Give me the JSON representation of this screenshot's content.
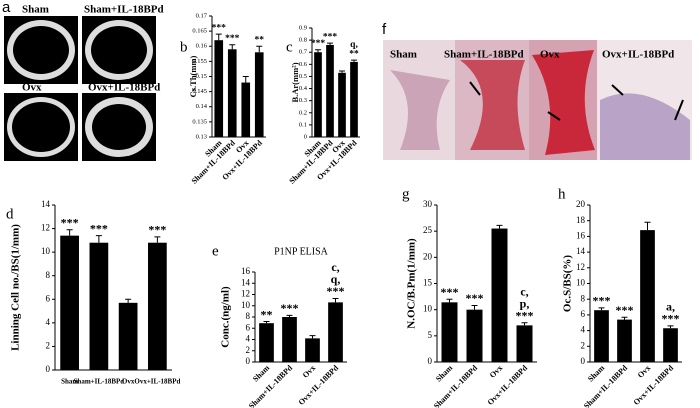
{
  "chart_data": [
    {
      "type": "bar",
      "panel": "b",
      "y_label": "Cs.Th(mm)",
      "categories": [
        "Sham",
        "Sham+IL-18BPd",
        "Ovx",
        "Ovx+IL-18BPd"
      ],
      "values": [
        0.162,
        0.159,
        0.148,
        0.158
      ],
      "errors": [
        0.002,
        0.0015,
        0.002,
        0.002
      ],
      "annotations": [
        [
          "***"
        ],
        [
          "***"
        ],
        null,
        [
          "**"
        ]
      ],
      "color": "#000000",
      "ylim": [
        0.13,
        0.17
      ],
      "yticks": [
        0.13,
        0.135,
        0.14,
        0.145,
        0.15,
        0.155,
        0.16,
        0.165,
        0.17
      ]
    },
    {
      "type": "bar",
      "panel": "c",
      "y_label": "B.Ar(mm²)",
      "categories": [
        "Sham",
        "Sham+IL-18BPd",
        "Ovx",
        "Ovx+IL-18BPd"
      ],
      "values": [
        0.7,
        0.76,
        0.53,
        0.62
      ],
      "errors": [
        0.02,
        0.015,
        0.015,
        0.015
      ],
      "annotations": [
        [
          "***"
        ],
        [
          "***"
        ],
        null,
        [
          "q,",
          "**"
        ]
      ],
      "color": "#000000",
      "ylim": [
        0,
        0.9
      ],
      "yticks": [
        0,
        0.1,
        0.2,
        0.3,
        0.4,
        0.5,
        0.6,
        0.7,
        0.8,
        0.9
      ]
    },
    {
      "type": "bar",
      "panel": "d",
      "y_label": "Linning Cell no./BS(1/mm)",
      "categories": [
        "Sham",
        "Sham+IL-18BPd",
        "Ovx",
        "Ovx+IL-18BPd"
      ],
      "values": [
        11.4,
        10.8,
        5.7,
        10.8
      ],
      "errors": [
        0.5,
        0.6,
        0.3,
        0.5
      ],
      "annotations": [
        [
          "***"
        ],
        [
          "***"
        ],
        null,
        [
          "***"
        ]
      ],
      "color": "#000000",
      "ylim": [
        0,
        14
      ],
      "yticks": [
        0,
        2,
        4,
        6,
        8,
        10,
        12,
        14
      ]
    },
    {
      "type": "bar",
      "panel": "e",
      "title": "P1NP ELISA",
      "y_label": "Conc.(ng/ml)",
      "categories": [
        "Sham",
        "Sham+IL-18BPd",
        "Ovx",
        "Ovx+IL-18BPd"
      ],
      "values": [
        6.9,
        8.0,
        4.2,
        10.6
      ],
      "errors": [
        0.3,
        0.3,
        0.5,
        0.7
      ],
      "annotations": [
        [
          "**"
        ],
        [
          "***"
        ],
        null,
        [
          "c,",
          "q,",
          "***"
        ]
      ],
      "color": "#000000",
      "ylim": [
        0,
        16
      ],
      "yticks": [
        0,
        2,
        4,
        6,
        8,
        10,
        12,
        14,
        16
      ]
    },
    {
      "type": "bar",
      "panel": "g",
      "y_label": "N.OC/B.Pm(1/mm)",
      "categories": [
        "Sham",
        "Sham+IL-18BPd",
        "Ovx",
        "Ovx+IL-18BPd"
      ],
      "values": [
        11.4,
        10.0,
        25.5,
        7.0
      ],
      "errors": [
        0.6,
        0.8,
        0.6,
        0.5
      ],
      "annotations": [
        [
          "***"
        ],
        [
          "***"
        ],
        null,
        [
          "c,",
          "p,",
          "***"
        ]
      ],
      "color": "#000000",
      "ylim": [
        0,
        30
      ],
      "yticks": [
        0,
        5,
        10,
        15,
        20,
        25,
        30
      ]
    },
    {
      "type": "bar",
      "panel": "h",
      "y_label": "Oc.S/BS(%)",
      "categories": [
        "Sham",
        "Sham+IL-18BPd",
        "Ovx",
        "Ovx+IL-18BPd"
      ],
      "values": [
        6.6,
        5.4,
        16.8,
        4.3
      ],
      "errors": [
        0.3,
        0.3,
        1.0,
        0.3
      ],
      "annotations": [
        [
          "***"
        ],
        [
          "***"
        ],
        null,
        [
          "a,",
          "***"
        ]
      ],
      "color": "#000000",
      "ylim": [
        0,
        20
      ],
      "yticks": [
        0,
        2,
        4,
        6,
        8,
        10,
        12,
        14,
        16,
        18,
        20
      ]
    }
  ],
  "images": {
    "a": {
      "panel": "a",
      "captions": [
        "Sham",
        "Sham+IL-18BPd",
        "Ovx",
        "Ovx+IL-18BPd"
      ]
    },
    "f": {
      "panel": "f",
      "captions": [
        "Sham",
        "Sham+IL-18BPd",
        "Ovx",
        "Ovx+IL-18BPd"
      ]
    }
  }
}
